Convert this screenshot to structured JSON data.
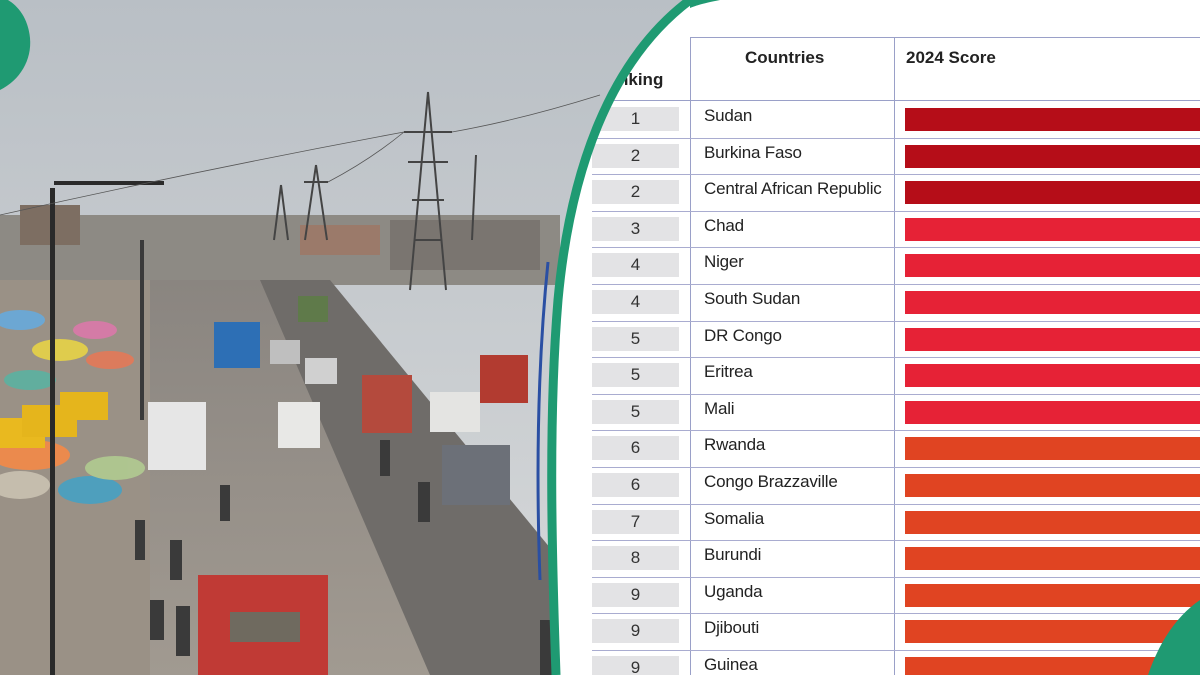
{
  "table": {
    "headers": {
      "ranking": "nking",
      "countries": "Countries",
      "score": "2024 Score"
    },
    "rows": [
      {
        "rank": "1",
        "country": "Sudan",
        "color": "#b50d18"
      },
      {
        "rank": "2",
        "country": "Burkina Faso",
        "color": "#b50d18"
      },
      {
        "rank": "2",
        "country": "Central African Republic",
        "color": "#b50d18"
      },
      {
        "rank": "3",
        "country": "Chad",
        "color": "#e62236"
      },
      {
        "rank": "4",
        "country": "Niger",
        "color": "#e62236"
      },
      {
        "rank": "4",
        "country": "South Sudan",
        "color": "#e62236"
      },
      {
        "rank": "5",
        "country": "DR Congo",
        "color": "#e62236"
      },
      {
        "rank": "5",
        "country": "Eritrea",
        "color": "#e62236"
      },
      {
        "rank": "5",
        "country": "Mali",
        "color": "#e62236"
      },
      {
        "rank": "6",
        "country": "Rwanda",
        "color": "#e04422"
      },
      {
        "rank": "6",
        "country": "Congo Brazzaville",
        "color": "#e04422"
      },
      {
        "rank": "7",
        "country": "Somalia",
        "color": "#e04422"
      },
      {
        "rank": "8",
        "country": "Burundi",
        "color": "#e04422"
      },
      {
        "rank": "9",
        "country": "Uganda",
        "color": "#e04422"
      },
      {
        "rank": "9",
        "country": "Djibouti",
        "color": "#e04422"
      },
      {
        "rank": "9",
        "country": "Guinea",
        "color": "#e04422"
      }
    ]
  },
  "colors": {
    "accent_teal": "#1f9a72",
    "divider_blue": "#2a4fa3"
  }
}
